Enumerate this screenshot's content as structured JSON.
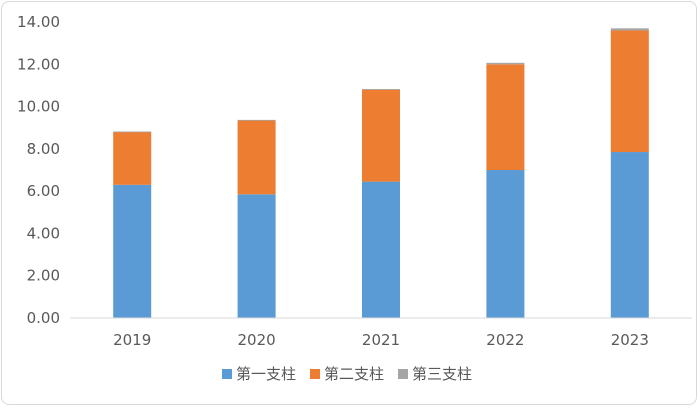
{
  "chart_data": {
    "type": "bar",
    "stacked": true,
    "title": "",
    "xlabel": "",
    "ylabel": "",
    "categories": [
      "2019",
      "2020",
      "2021",
      "2022",
      "2023"
    ],
    "ylim": [
      0,
      14
    ],
    "yticks": [
      "0.00",
      "2.00",
      "4.00",
      "6.00",
      "8.00",
      "10.00",
      "12.00",
      "14.00"
    ],
    "ytick_values": [
      0,
      2,
      4,
      6,
      8,
      10,
      12,
      14
    ],
    "grid": false,
    "legend_position": "bottom",
    "series": [
      {
        "name": "第一支柱",
        "color": "#5b9bd5",
        "values": [
          6.3,
          5.85,
          6.45,
          7.0,
          7.85
        ]
      },
      {
        "name": "第二支柱",
        "color": "#ed7d31",
        "values": [
          2.5,
          3.5,
          4.35,
          5.0,
          5.75
        ]
      },
      {
        "name": "第三支柱",
        "color": "#a5a5a5",
        "values": [
          0.02,
          0.02,
          0.03,
          0.07,
          0.1
        ]
      }
    ]
  }
}
